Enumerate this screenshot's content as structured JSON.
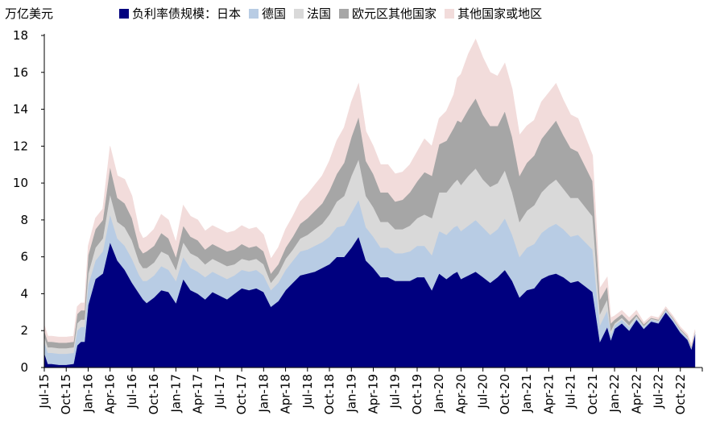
{
  "chart_data": {
    "type": "area",
    "stacked": true,
    "y_unit_label": "万亿美元",
    "ylim": [
      0,
      18
    ],
    "y_ticks": [
      "0",
      "2",
      "4",
      "6",
      "8",
      "10",
      "12",
      "14",
      "16",
      "18"
    ],
    "x_ticks": [
      "Jul-15",
      "Oct-15",
      "Jan-16",
      "Apr-16",
      "Jul-16",
      "Oct-16",
      "Jan-17",
      "Apr-17",
      "Jul-17",
      "Oct-17",
      "Jan-18",
      "Apr-18",
      "Jul-18",
      "Oct-18",
      "Jan-19",
      "Apr-19",
      "Jul-19",
      "Oct-19",
      "Jan-20",
      "Apr-20",
      "Jul-20",
      "Oct-20",
      "Jan-21",
      "Apr-21",
      "Jul-21",
      "Oct-21",
      "Jan-22",
      "Apr-22",
      "Jul-22",
      "Oct-22"
    ],
    "x_range_months": [
      0,
      90
    ],
    "legend_position": "top",
    "x": [
      0,
      0.5,
      1,
      2,
      3,
      4,
      4.5,
      5,
      5.5,
      6,
      7,
      8,
      9,
      10,
      11,
      12,
      13,
      13.5,
      14,
      15,
      16,
      17,
      18,
      19,
      20,
      21,
      22,
      23,
      24,
      25,
      26,
      27,
      28,
      29,
      30,
      31,
      32,
      33,
      34,
      35,
      36,
      37,
      38,
      39,
      40,
      41,
      42,
      43,
      44,
      45,
      46,
      47,
      48,
      49,
      50,
      51,
      52,
      53,
      54,
      55,
      56,
      56.5,
      57,
      58,
      59,
      60,
      61,
      62,
      63,
      64,
      65,
      66,
      67,
      68,
      69,
      70,
      71,
      72,
      73,
      74,
      75,
      76,
      77,
      77.5,
      78,
      79,
      80,
      81,
      82,
      83,
      84,
      85,
      86,
      87,
      88,
      88.5,
      89
    ],
    "series": [
      {
        "name": "负利率债规模：日本",
        "color": "#00007f",
        "values": [
          0.8,
          0.2,
          0.2,
          0.15,
          0.15,
          0.2,
          1.2,
          1.4,
          1.4,
          3.4,
          4.8,
          5.1,
          6.8,
          5.8,
          5.3,
          4.6,
          4.0,
          3.7,
          3.5,
          3.8,
          4.2,
          4.1,
          3.5,
          4.8,
          4.2,
          4.0,
          3.7,
          4.1,
          3.9,
          3.7,
          4.0,
          4.3,
          4.2,
          4.3,
          4.1,
          3.3,
          3.6,
          4.2,
          4.6,
          5.0,
          5.1,
          5.2,
          5.4,
          5.6,
          6.0,
          6.0,
          6.5,
          7.1,
          5.8,
          5.4,
          4.9,
          4.9,
          4.7,
          4.7,
          4.7,
          4.9,
          4.9,
          4.2,
          5.1,
          4.8,
          5.1,
          5.2,
          4.8,
          5.0,
          5.2,
          4.9,
          4.6,
          4.9,
          5.3,
          4.7,
          3.8,
          4.2,
          4.3,
          4.8,
          5.0,
          5.1,
          4.9,
          4.6,
          4.7,
          4.4,
          4.1,
          1.4,
          2.2,
          1.5,
          2.1,
          2.4,
          2.0,
          2.6,
          2.1,
          2.5,
          2.4,
          3.0,
          2.5,
          1.9,
          1.5,
          1.0,
          1.8
        ]
      },
      {
        "name": "德国",
        "color": "#b8cce4",
        "values": [
          0.6,
          0.6,
          0.6,
          0.6,
          0.6,
          0.6,
          0.8,
          0.8,
          0.8,
          1.1,
          1.0,
          1.2,
          1.5,
          1.2,
          1.3,
          1.3,
          1.0,
          1.0,
          1.2,
          1.2,
          1.3,
          1.2,
          1.2,
          1.2,
          1.2,
          1.2,
          1.2,
          1.1,
          1.1,
          1.1,
          1.0,
          1.0,
          1.0,
          1.0,
          0.9,
          0.9,
          1.0,
          1.1,
          1.2,
          1.3,
          1.3,
          1.4,
          1.4,
          1.5,
          1.6,
          1.7,
          1.9,
          2.0,
          1.8,
          1.7,
          1.6,
          1.6,
          1.5,
          1.5,
          1.6,
          1.7,
          1.7,
          1.9,
          2.3,
          2.4,
          2.5,
          2.5,
          2.6,
          2.7,
          2.8,
          2.7,
          2.6,
          2.6,
          2.8,
          2.5,
          2.2,
          2.3,
          2.4,
          2.5,
          2.6,
          2.7,
          2.6,
          2.5,
          2.5,
          2.4,
          2.3,
          0.9,
          0.9,
          0.3,
          0.2,
          0.2,
          0.2,
          0.1,
          0.1,
          0.1,
          0.1,
          0.1,
          0.1,
          0.1,
          0.1,
          0.05,
          0.05
        ]
      },
      {
        "name": "法国",
        "color": "#d9d9d9",
        "values": [
          0.3,
          0.3,
          0.3,
          0.3,
          0.3,
          0.3,
          0.4,
          0.4,
          0.4,
          0.6,
          0.7,
          0.7,
          1.1,
          0.9,
          1.0,
          1.0,
          0.7,
          0.7,
          0.7,
          0.7,
          0.8,
          0.8,
          0.6,
          0.8,
          0.8,
          0.8,
          0.7,
          0.7,
          0.7,
          0.7,
          0.6,
          0.6,
          0.6,
          0.6,
          0.6,
          0.4,
          0.5,
          0.6,
          0.6,
          0.7,
          0.8,
          0.9,
          1.0,
          1.2,
          1.4,
          1.6,
          2.0,
          2.2,
          1.7,
          1.6,
          1.4,
          1.4,
          1.3,
          1.3,
          1.4,
          1.5,
          1.7,
          2.0,
          2.1,
          2.3,
          2.4,
          2.5,
          2.5,
          2.7,
          2.8,
          2.6,
          2.6,
          2.5,
          2.6,
          2.3,
          1.9,
          2.0,
          2.1,
          2.2,
          2.3,
          2.4,
          2.2,
          2.1,
          2.0,
          1.9,
          1.8,
          0.6,
          0.6,
          0.2,
          0.1,
          0.1,
          0.1,
          0.1,
          0.05,
          0.05,
          0.05,
          0.05,
          0.05,
          0.05,
          0.05,
          0.05,
          0.05
        ]
      },
      {
        "name": "欧元区其他国家",
        "color": "#a6a6a6",
        "values": [
          0.3,
          0.3,
          0.3,
          0.3,
          0.3,
          0.3,
          0.5,
          0.5,
          0.5,
          1.0,
          1.0,
          1.0,
          1.5,
          1.3,
          1.3,
          1.2,
          0.8,
          0.8,
          0.9,
          0.9,
          1.0,
          0.9,
          0.7,
          0.9,
          0.9,
          0.9,
          0.8,
          0.8,
          0.8,
          0.8,
          0.8,
          0.8,
          0.7,
          0.7,
          0.7,
          0.5,
          0.5,
          0.6,
          0.7,
          0.8,
          0.9,
          1.0,
          1.1,
          1.3,
          1.5,
          1.8,
          2.1,
          2.3,
          1.9,
          1.8,
          1.6,
          1.6,
          1.5,
          1.6,
          1.8,
          2.0,
          2.3,
          2.3,
          2.6,
          2.8,
          3.0,
          3.2,
          3.4,
          3.6,
          3.8,
          3.5,
          3.3,
          3.1,
          3.2,
          3.0,
          2.5,
          2.6,
          2.7,
          2.9,
          3.0,
          3.2,
          2.9,
          2.7,
          2.5,
          2.2,
          1.9,
          0.8,
          0.7,
          0.4,
          0.2,
          0.2,
          0.2,
          0.1,
          0.1,
          0.05,
          0.05,
          0.05,
          0.05,
          0.05,
          0.05,
          0.05,
          0.05
        ]
      },
      {
        "name": "其他国家或地区",
        "color": "#f2dcdb",
        "values": [
          0.3,
          0.3,
          0.3,
          0.3,
          0.3,
          0.3,
          0.4,
          0.4,
          0.4,
          0.5,
          0.6,
          0.6,
          1.1,
          1.2,
          1.3,
          1.2,
          0.9,
          0.8,
          0.8,
          0.9,
          1.0,
          1.0,
          0.8,
          1.1,
          1.1,
          1.1,
          1.0,
          1.0,
          1.0,
          1.0,
          1.0,
          1.0,
          1.0,
          1.0,
          0.9,
          0.8,
          0.9,
          1.0,
          1.1,
          1.2,
          1.3,
          1.4,
          1.5,
          1.6,
          1.8,
          1.9,
          1.9,
          1.8,
          1.6,
          1.5,
          1.5,
          1.5,
          1.5,
          1.5,
          1.5,
          1.6,
          1.8,
          1.6,
          1.4,
          1.6,
          1.8,
          2.3,
          2.6,
          3.0,
          3.2,
          3.1,
          2.9,
          2.7,
          2.6,
          2.6,
          2.2,
          2.0,
          1.9,
          2.0,
          2.0,
          2.0,
          1.9,
          1.8,
          1.8,
          1.6,
          1.4,
          0.6,
          0.5,
          0.3,
          0.2,
          0.2,
          0.2,
          0.2,
          0.1,
          0.1,
          0.1,
          0.1,
          0.1,
          0.1,
          0.1,
          0.1,
          0.1
        ]
      }
    ]
  }
}
